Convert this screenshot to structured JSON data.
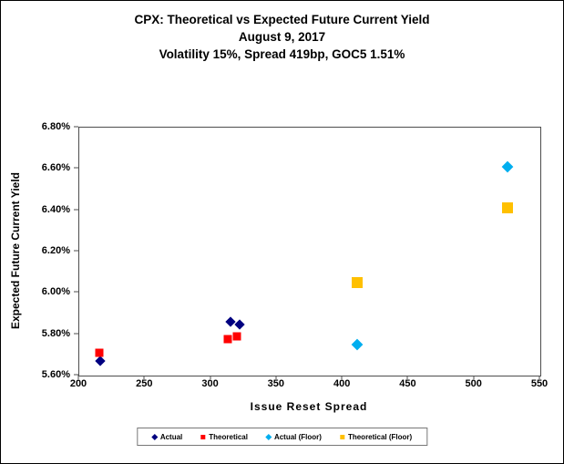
{
  "title": {
    "line1": "CPX: Theoretical vs Expected Future Current Yield",
    "line2": "August 9, 2017",
    "line3": "Volatility 15%, Spread 419bp, GOC5 1.51%"
  },
  "chart_data": {
    "type": "scatter",
    "title": "CPX: Theoretical vs Expected Future Current Yield — August 9, 2017 — Volatility 15%, Spread 419bp, GOC5 1.51%",
    "xlabel": "Issue Reset Spread",
    "ylabel": "Expected Future Current Yield",
    "xlim": [
      200,
      550
    ],
    "ylim": [
      5.6,
      6.8
    ],
    "grid": false,
    "legend_position": "bottom",
    "x_ticks": [
      {
        "value": 200,
        "label": "200"
      },
      {
        "value": 250,
        "label": "250"
      },
      {
        "value": 300,
        "label": "300"
      },
      {
        "value": 350,
        "label": "350"
      },
      {
        "value": 400,
        "label": "400"
      },
      {
        "value": 450,
        "label": "450"
      },
      {
        "value": 500,
        "label": "500"
      },
      {
        "value": 550,
        "label": "550"
      }
    ],
    "y_ticks": [
      {
        "value": 6.8,
        "label": "6.80%"
      },
      {
        "value": 6.6,
        "label": "6.60%"
      },
      {
        "value": 6.4,
        "label": "6.40%"
      },
      {
        "value": 6.2,
        "label": "6.20%"
      },
      {
        "value": 6.0,
        "label": "6.00%"
      },
      {
        "value": 5.8,
        "label": "5.80%"
      },
      {
        "value": 5.6,
        "label": "5.60%"
      }
    ],
    "series": [
      {
        "name": "Actual",
        "marker": "diamond",
        "color": "#000080",
        "size": 8,
        "points": [
          [
            216,
            5.67
          ],
          [
            315,
            5.86
          ],
          [
            322,
            5.845
          ]
        ]
      },
      {
        "name": "Theoretical",
        "marker": "square",
        "color": "#ff0000",
        "size": 9,
        "points": [
          [
            215,
            5.71
          ],
          [
            313,
            5.775
          ],
          [
            320,
            5.79
          ]
        ]
      },
      {
        "name": "Actual (Floor)",
        "marker": "diamond",
        "color": "#00aeef",
        "size": 9,
        "points": [
          [
            411,
            5.75
          ],
          [
            525,
            6.61
          ]
        ]
      },
      {
        "name": "Theoretical (Floor)",
        "marker": "square",
        "color": "#ffc000",
        "size": 12,
        "points": [
          [
            411,
            6.05
          ],
          [
            525,
            6.41
          ]
        ]
      }
    ]
  }
}
